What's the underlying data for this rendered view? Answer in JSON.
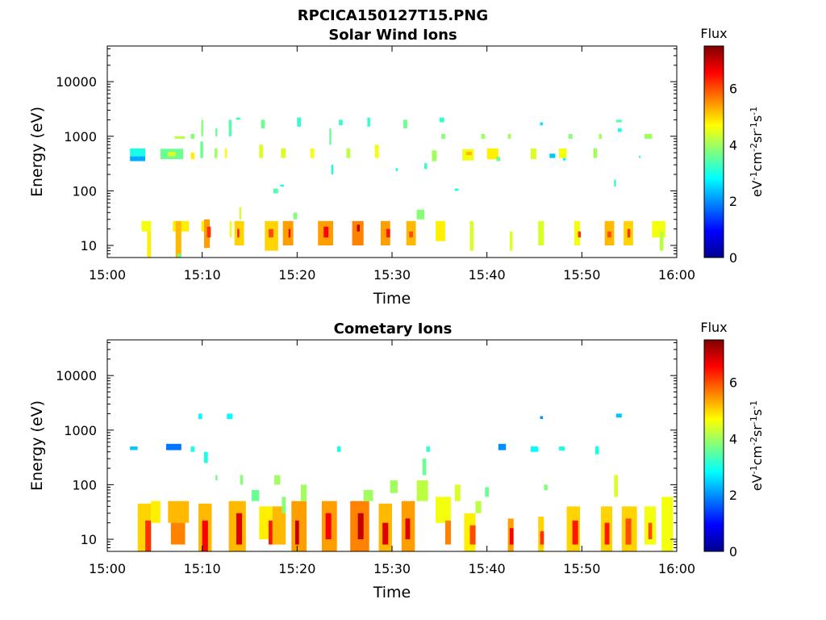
{
  "figure_title": "RPCICA150127T15.PNG",
  "colors": {
    "colormap": [
      "#00008f",
      "#0000ff",
      "#007fff",
      "#00ffff",
      "#7fff7f",
      "#ffff00",
      "#ff7f00",
      "#ff0000",
      "#800000"
    ],
    "axes": "#000000",
    "background": "#ffffff"
  },
  "chart_data": [
    {
      "type": "heatmap",
      "title": "Solar Wind Ions",
      "xlabel": "Time",
      "ylabel": "Energy (eV)",
      "x_ticks": [
        "15:00",
        "15:10",
        "15:20",
        "15:30",
        "15:40",
        "15:50",
        "16:00"
      ],
      "x_range_minutes": [
        0,
        60
      ],
      "y_scale": "log",
      "y_range": [
        6,
        45000
      ],
      "y_ticks": [
        10,
        100,
        1000,
        10000
      ],
      "y_tick_labels": [
        "10",
        "100",
        "1000",
        "10000"
      ],
      "colorbar": {
        "title": "Flux",
        "label": "eV-1cm-2sr-1s-1",
        "range": [
          0,
          7.5
        ],
        "ticks": [
          "0",
          "2",
          "4",
          "6"
        ]
      },
      "cells": [
        [
          2.4,
          4.0,
          430,
          600,
          3.0
        ],
        [
          2.4,
          4.0,
          350,
          430,
          2.2
        ],
        [
          3.6,
          4.6,
          18,
          28,
          4.6
        ],
        [
          4.2,
          4.6,
          6,
          18,
          4.8
        ],
        [
          5.6,
          8.0,
          380,
          590,
          3.6
        ],
        [
          6.4,
          7.2,
          430,
          520,
          4.4
        ],
        [
          6.9,
          8.6,
          18,
          28,
          4.8
        ],
        [
          7.2,
          7.8,
          6,
          28,
          5.2
        ],
        [
          7.4,
          7.8,
          6,
          7,
          3.6
        ],
        [
          7.1,
          8.2,
          900,
          1000,
          4.2
        ],
        [
          8.8,
          9.2,
          380,
          500,
          4.8
        ],
        [
          8.8,
          9.2,
          900,
          1100,
          3.8
        ],
        [
          9.8,
          10.1,
          400,
          800,
          3.6
        ],
        [
          9.9,
          10.1,
          1000,
          2000,
          3.8
        ],
        [
          9.9,
          10.2,
          18,
          28,
          4.8
        ],
        [
          10.2,
          10.8,
          9,
          30,
          5.4
        ],
        [
          10.5,
          10.9,
          14,
          22,
          6.2
        ],
        [
          11.3,
          11.6,
          400,
          600,
          4.0
        ],
        [
          11.4,
          11.6,
          1000,
          1400,
          3.6
        ],
        [
          12.4,
          12.6,
          400,
          600,
          4.6
        ],
        [
          12.8,
          13.1,
          1000,
          2000,
          3.4
        ],
        [
          12.9,
          13.1,
          14,
          28,
          4.6
        ],
        [
          13.4,
          14.4,
          10,
          28,
          5.0
        ],
        [
          13.7,
          13.9,
          14,
          20,
          6.4
        ],
        [
          13.6,
          14.0,
          2000,
          2200,
          3.2
        ],
        [
          13.9,
          14.1,
          30,
          50,
          4.4
        ],
        [
          16.0,
          16.4,
          400,
          700,
          4.4
        ],
        [
          16.2,
          16.6,
          1400,
          2000,
          3.6
        ],
        [
          16.6,
          18.0,
          8,
          28,
          5.0
        ],
        [
          17.0,
          17.5,
          14,
          20,
          6.0
        ],
        [
          17.5,
          18.0,
          90,
          110,
          3.4
        ],
        [
          18.2,
          18.6,
          120,
          130,
          3.0
        ],
        [
          18.3,
          18.8,
          400,
          600,
          4.4
        ],
        [
          18.5,
          19.6,
          10,
          28,
          5.4
        ],
        [
          19.1,
          19.3,
          14,
          20,
          6.6
        ],
        [
          19.6,
          20.0,
          30,
          40,
          3.8
        ],
        [
          20.0,
          20.4,
          1500,
          2200,
          3.2
        ],
        [
          21.4,
          21.8,
          400,
          600,
          4.6
        ],
        [
          22.2,
          23.8,
          10,
          28,
          5.4
        ],
        [
          22.8,
          23.3,
          14,
          22,
          6.6
        ],
        [
          23.4,
          23.6,
          700,
          1400,
          3.6
        ],
        [
          23.6,
          23.8,
          200,
          300,
          3.0
        ],
        [
          24.4,
          24.8,
          1600,
          2000,
          3.2
        ],
        [
          25.2,
          25.6,
          400,
          600,
          4.2
        ],
        [
          25.8,
          27.0,
          10,
          28,
          5.6
        ],
        [
          26.3,
          26.6,
          18,
          24,
          7.0
        ],
        [
          27.4,
          27.7,
          1500,
          2200,
          3.2
        ],
        [
          28.2,
          28.6,
          400,
          700,
          4.6
        ],
        [
          28.8,
          29.8,
          10,
          28,
          5.4
        ],
        [
          29.4,
          29.8,
          14,
          20,
          6.4
        ],
        [
          30.4,
          30.6,
          230,
          260,
          3.0
        ],
        [
          31.2,
          31.6,
          1400,
          2000,
          3.6
        ],
        [
          31.5,
          32.5,
          10,
          28,
          5.2
        ],
        [
          31.8,
          32.2,
          14,
          18,
          6.0
        ],
        [
          32.6,
          33.4,
          30,
          45,
          3.8
        ],
        [
          33.4,
          33.7,
          250,
          320,
          3.2
        ],
        [
          34.2,
          34.7,
          350,
          550,
          4.0
        ],
        [
          34.6,
          35.6,
          12,
          28,
          4.8
        ],
        [
          35.0,
          35.5,
          1800,
          2200,
          3.2
        ],
        [
          35.2,
          35.6,
          900,
          1100,
          3.8
        ],
        [
          36.6,
          37.0,
          100,
          110,
          3.0
        ],
        [
          37.4,
          38.6,
          360,
          580,
          4.6
        ],
        [
          37.8,
          38.4,
          450,
          520,
          5.2
        ],
        [
          38.2,
          38.6,
          8,
          28,
          4.4
        ],
        [
          39.4,
          39.8,
          900,
          1100,
          4.0
        ],
        [
          40.0,
          41.2,
          380,
          600,
          4.8
        ],
        [
          41.0,
          41.4,
          350,
          420,
          3.6
        ],
        [
          42.2,
          42.5,
          900,
          1100,
          4.0
        ],
        [
          42.4,
          42.7,
          8,
          18,
          4.4
        ],
        [
          44.6,
          45.2,
          380,
          600,
          4.4
        ],
        [
          45.4,
          46.0,
          10,
          28,
          4.4
        ],
        [
          45.6,
          45.9,
          1600,
          1800,
          2.6
        ],
        [
          46.6,
          47.2,
          400,
          480,
          2.4
        ],
        [
          47.6,
          48.4,
          400,
          600,
          4.6
        ],
        [
          48.0,
          48.3,
          360,
          400,
          2.8
        ],
        [
          48.6,
          49.0,
          900,
          1100,
          3.8
        ],
        [
          49.2,
          49.8,
          10,
          28,
          4.6
        ],
        [
          49.6,
          49.9,
          14,
          18,
          6.2
        ],
        [
          51.2,
          51.6,
          400,
          600,
          4.0
        ],
        [
          51.8,
          52.1,
          900,
          1100,
          4.0
        ],
        [
          52.4,
          53.4,
          10,
          28,
          5.2
        ],
        [
          52.7,
          53.1,
          14,
          18,
          6.0
        ],
        [
          53.4,
          53.6,
          120,
          160,
          3.2
        ],
        [
          53.6,
          54.2,
          1800,
          2000,
          3.4
        ],
        [
          53.8,
          54.2,
          1200,
          1400,
          3.0
        ],
        [
          54.4,
          55.4,
          10,
          28,
          5.0
        ],
        [
          54.8,
          55.1,
          14,
          20,
          6.2
        ],
        [
          56.0,
          56.2,
          400,
          440,
          3.4
        ],
        [
          56.6,
          57.4,
          900,
          1100,
          4.0
        ],
        [
          57.4,
          58.8,
          14,
          28,
          4.6
        ],
        [
          58.2,
          58.6,
          8,
          18,
          4.2
        ]
      ]
    },
    {
      "type": "heatmap",
      "title": "Cometary Ions",
      "xlabel": "Time",
      "ylabel": "Energy (eV)",
      "x_ticks": [
        "15:00",
        "15:10",
        "15:20",
        "15:30",
        "15:40",
        "15:50",
        "16:00"
      ],
      "x_range_minutes": [
        0,
        60
      ],
      "y_scale": "log",
      "y_range": [
        6,
        45000
      ],
      "y_ticks": [
        10,
        100,
        1000,
        10000
      ],
      "y_tick_labels": [
        "10",
        "100",
        "1000",
        "10000"
      ],
      "colorbar": {
        "title": "Flux",
        "label": "eV-1cm-2sr-1s-1",
        "range": [
          0,
          7.5
        ],
        "ticks": [
          "0",
          "2",
          "4",
          "6"
        ]
      },
      "cells": [
        [
          2.4,
          3.2,
          430,
          500,
          2.4
        ],
        [
          3.2,
          4.6,
          6,
          45,
          5.0
        ],
        [
          4.0,
          4.6,
          6,
          22,
          6.2
        ],
        [
          4.6,
          5.6,
          20,
          50,
          4.8
        ],
        [
          6.2,
          7.8,
          430,
          560,
          1.8
        ],
        [
          6.4,
          8.6,
          20,
          50,
          5.2
        ],
        [
          6.7,
          8.2,
          8,
          20,
          5.6
        ],
        [
          8.8,
          9.2,
          400,
          500,
          3.0
        ],
        [
          9.6,
          10.0,
          1600,
          2000,
          2.8
        ],
        [
          9.6,
          11.0,
          6,
          45,
          5.2
        ],
        [
          10.0,
          10.6,
          6,
          22,
          6.6
        ],
        [
          10.2,
          10.6,
          250,
          400,
          3.0
        ],
        [
          11.4,
          11.6,
          120,
          150,
          3.6
        ],
        [
          12.6,
          13.2,
          1600,
          2000,
          2.8
        ],
        [
          12.8,
          14.6,
          6,
          50,
          5.2
        ],
        [
          13.6,
          14.2,
          8,
          30,
          6.8
        ],
        [
          14.0,
          14.3,
          100,
          150,
          3.8
        ],
        [
          15.2,
          16.0,
          50,
          80,
          3.6
        ],
        [
          16.0,
          17.4,
          10,
          40,
          4.8
        ],
        [
          17.0,
          17.6,
          8,
          22,
          6.4
        ],
        [
          17.4,
          18.8,
          8,
          40,
          5.2
        ],
        [
          17.6,
          18.2,
          100,
          150,
          4.0
        ],
        [
          18.4,
          18.8,
          30,
          60,
          3.8
        ],
        [
          19.4,
          21.0,
          6,
          50,
          5.4
        ],
        [
          19.8,
          20.2,
          8,
          22,
          7.0
        ],
        [
          20.4,
          21.0,
          50,
          100,
          4.0
        ],
        [
          22.6,
          24.2,
          6,
          50,
          5.4
        ],
        [
          23.0,
          23.6,
          10,
          30,
          6.6
        ],
        [
          24.2,
          24.6,
          400,
          500,
          3.0
        ],
        [
          25.6,
          27.6,
          6,
          50,
          5.6
        ],
        [
          26.4,
          27.0,
          10,
          30,
          7.0
        ],
        [
          27.0,
          28.0,
          50,
          80,
          4.0
        ],
        [
          28.6,
          30.0,
          6,
          45,
          5.2
        ],
        [
          29.0,
          29.6,
          8,
          20,
          6.8
        ],
        [
          29.8,
          30.6,
          70,
          120,
          4.0
        ],
        [
          31.0,
          32.4,
          6,
          50,
          5.4
        ],
        [
          31.4,
          31.9,
          10,
          24,
          6.8
        ],
        [
          32.6,
          33.8,
          50,
          120,
          4.2
        ],
        [
          33.2,
          33.6,
          150,
          300,
          3.6
        ],
        [
          33.6,
          34.0,
          400,
          500,
          3.2
        ],
        [
          34.6,
          36.2,
          20,
          60,
          4.6
        ],
        [
          35.6,
          36.2,
          8,
          22,
          5.6
        ],
        [
          36.6,
          37.2,
          50,
          100,
          4.4
        ],
        [
          37.6,
          38.8,
          6,
          30,
          4.8
        ],
        [
          38.2,
          38.8,
          8,
          18,
          6.0
        ],
        [
          38.8,
          39.4,
          30,
          50,
          4.2
        ],
        [
          39.8,
          40.2,
          60,
          90,
          3.6
        ],
        [
          41.2,
          42.0,
          430,
          560,
          2.0
        ],
        [
          42.2,
          42.8,
          6,
          24,
          5.4
        ],
        [
          42.4,
          42.8,
          8,
          16,
          6.6
        ],
        [
          44.6,
          45.4,
          400,
          500,
          2.8
        ],
        [
          45.4,
          46.0,
          6,
          26,
          5.0
        ],
        [
          45.6,
          46.0,
          8,
          14,
          6.2
        ],
        [
          46.0,
          46.4,
          80,
          100,
          3.8
        ],
        [
          45.6,
          45.9,
          1600,
          1800,
          2.0
        ],
        [
          47.6,
          48.2,
          420,
          500,
          3.0
        ],
        [
          48.4,
          49.8,
          6,
          40,
          5.0
        ],
        [
          49.0,
          49.6,
          8,
          22,
          6.4
        ],
        [
          51.4,
          51.8,
          360,
          500,
          3.0
        ],
        [
          52.0,
          53.2,
          6,
          40,
          5.0
        ],
        [
          52.4,
          52.9,
          8,
          20,
          6.4
        ],
        [
          53.4,
          53.8,
          60,
          150,
          4.4
        ],
        [
          53.6,
          54.2,
          1700,
          2000,
          2.4
        ],
        [
          54.2,
          55.8,
          6,
          40,
          5.0
        ],
        [
          54.6,
          55.2,
          8,
          24,
          6.0
        ],
        [
          56.6,
          57.8,
          8,
          40,
          4.6
        ],
        [
          57.0,
          57.4,
          10,
          20,
          6.0
        ],
        [
          58.4,
          59.6,
          6,
          60,
          4.6
        ]
      ]
    }
  ]
}
